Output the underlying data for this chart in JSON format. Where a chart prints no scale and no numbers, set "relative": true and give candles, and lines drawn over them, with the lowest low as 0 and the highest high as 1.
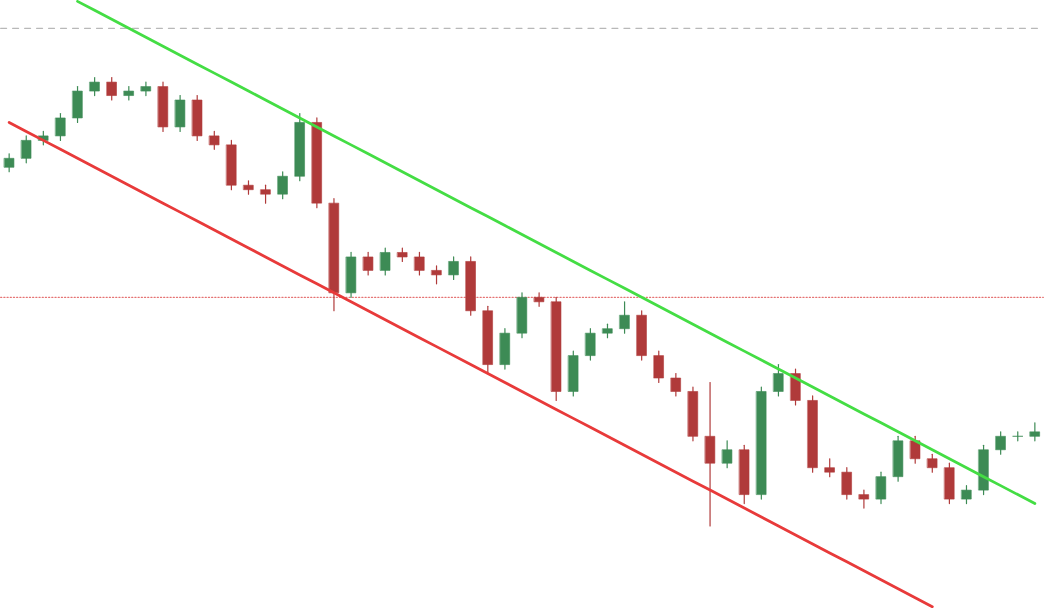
{
  "chart_data": {
    "type": "candlestick",
    "relative": true,
    "categories": [
      null,
      null,
      null,
      null,
      null,
      null,
      null,
      null,
      null,
      null,
      null,
      null,
      null,
      null,
      null,
      null,
      null,
      null,
      null,
      null,
      null,
      null,
      null,
      null,
      null,
      null,
      null,
      null,
      null,
      null,
      null,
      null,
      null,
      null,
      null,
      null,
      null,
      null,
      null,
      null,
      null,
      null,
      null,
      null,
      null,
      null,
      null,
      null,
      null,
      null,
      null,
      null,
      null,
      null,
      null,
      null,
      null,
      null,
      null,
      null,
      null
    ],
    "ohlc": [
      [
        0.8,
        0.83,
        0.79,
        0.82
      ],
      [
        0.82,
        0.87,
        0.81,
        0.86
      ],
      [
        0.86,
        0.88,
        0.85,
        0.87
      ],
      [
        0.87,
        0.92,
        0.86,
        0.91
      ],
      [
        0.91,
        0.98,
        0.9,
        0.97
      ],
      [
        0.97,
        1.0,
        0.96,
        0.99
      ],
      [
        0.99,
        1.0,
        0.95,
        0.96
      ],
      [
        0.96,
        0.98,
        0.95,
        0.97
      ],
      [
        0.97,
        0.99,
        0.96,
        0.98
      ],
      [
        0.98,
        0.99,
        0.88,
        0.89
      ],
      [
        0.89,
        0.96,
        0.88,
        0.95
      ],
      [
        0.95,
        0.96,
        0.86,
        0.87
      ],
      [
        0.87,
        0.88,
        0.84,
        0.85
      ],
      [
        0.85,
        0.86,
        0.75,
        0.76
      ],
      [
        0.76,
        0.77,
        0.74,
        0.75
      ],
      [
        0.75,
        0.76,
        0.72,
        0.74
      ],
      [
        0.74,
        0.79,
        0.73,
        0.78
      ],
      [
        0.78,
        0.92,
        0.77,
        0.9
      ],
      [
        0.9,
        0.91,
        0.71,
        0.72
      ],
      [
        0.72,
        0.73,
        0.48,
        0.52
      ],
      [
        0.52,
        0.61,
        0.51,
        0.6
      ],
      [
        0.6,
        0.61,
        0.56,
        0.57
      ],
      [
        0.57,
        0.62,
        0.56,
        0.61
      ],
      [
        0.61,
        0.62,
        0.59,
        0.6
      ],
      [
        0.6,
        0.61,
        0.56,
        0.57
      ],
      [
        0.57,
        0.58,
        0.54,
        0.56
      ],
      [
        0.56,
        0.6,
        0.55,
        0.59
      ],
      [
        0.59,
        0.6,
        0.47,
        0.48
      ],
      [
        0.48,
        0.49,
        0.34,
        0.36
      ],
      [
        0.36,
        0.44,
        0.35,
        0.43
      ],
      [
        0.43,
        0.52,
        0.42,
        0.51
      ],
      [
        0.51,
        0.52,
        0.49,
        0.5
      ],
      [
        0.5,
        0.51,
        0.28,
        0.3
      ],
      [
        0.3,
        0.39,
        0.29,
        0.38
      ],
      [
        0.38,
        0.44,
        0.37,
        0.43
      ],
      [
        0.43,
        0.45,
        0.42,
        0.44
      ],
      [
        0.44,
        0.5,
        0.43,
        0.47
      ],
      [
        0.47,
        0.48,
        0.37,
        0.38
      ],
      [
        0.38,
        0.39,
        0.32,
        0.33
      ],
      [
        0.33,
        0.34,
        0.29,
        0.3
      ],
      [
        0.3,
        0.31,
        0.19,
        0.2
      ],
      [
        0.2,
        0.32,
        0.0,
        0.14
      ],
      [
        0.14,
        0.19,
        0.13,
        0.17
      ],
      [
        0.17,
        0.18,
        0.05,
        0.07
      ],
      [
        0.07,
        0.31,
        0.06,
        0.3
      ],
      [
        0.3,
        0.36,
        0.29,
        0.34
      ],
      [
        0.34,
        0.35,
        0.27,
        0.28
      ],
      [
        0.28,
        0.29,
        0.12,
        0.13
      ],
      [
        0.13,
        0.15,
        0.11,
        0.12
      ],
      [
        0.12,
        0.13,
        0.06,
        0.07
      ],
      [
        0.07,
        0.08,
        0.04,
        0.06
      ],
      [
        0.06,
        0.12,
        0.05,
        0.11
      ],
      [
        0.11,
        0.2,
        0.1,
        0.19
      ],
      [
        0.19,
        0.2,
        0.14,
        0.15
      ],
      [
        0.15,
        0.16,
        0.12,
        0.13
      ],
      [
        0.13,
        0.14,
        0.05,
        0.06
      ],
      [
        0.06,
        0.09,
        0.05,
        0.08
      ],
      [
        0.08,
        0.18,
        0.07,
        0.17
      ],
      [
        0.17,
        0.21,
        0.16,
        0.2
      ],
      [
        0.2,
        0.21,
        0.19,
        0.2
      ],
      [
        0.2,
        0.23,
        0.19,
        0.21
      ]
    ],
    "colors": [
      "#3d8b55",
      "#3d8b55",
      "#3d8b55",
      "#3d8b55",
      "#3d8b55",
      "#3d8b55",
      "#b03a3a",
      "#3d8b55",
      "#3d8b55",
      "#b03a3a",
      "#3d8b55",
      "#b03a3a",
      "#b03a3a",
      "#b03a3a",
      "#b03a3a",
      "#b03a3a",
      "#3d8b55",
      "#3d8b55",
      "#b03a3a",
      "#b03a3a",
      "#3d8b55",
      "#b03a3a",
      "#3d8b55",
      "#b03a3a",
      "#b03a3a",
      "#b03a3a",
      "#3d8b55",
      "#b03a3a",
      "#b03a3a",
      "#3d8b55",
      "#3d8b55",
      "#b03a3a",
      "#b03a3a",
      "#3d8b55",
      "#3d8b55",
      "#3d8b55",
      "#3d8b55",
      "#b03a3a",
      "#b03a3a",
      "#b03a3a",
      "#b03a3a",
      "#b03a3a",
      "#3d8b55",
      "#b03a3a",
      "#3d8b55",
      "#3d8b55",
      "#b03a3a",
      "#b03a3a",
      "#b03a3a",
      "#b03a3a",
      "#b03a3a",
      "#3d8b55",
      "#3d8b55",
      "#b03a3a",
      "#b03a3a",
      "#b03a3a",
      "#3d8b55",
      "#3d8b55",
      "#3d8b55",
      "#3d8b55",
      "#3d8b55"
    ],
    "series": [
      {
        "type": "line",
        "color": "#44dd44",
        "values": [
          null,
          null,
          null,
          null,
          1.17,
          1.15,
          1.13,
          1.11,
          1.09,
          1.07,
          1.05,
          1.03,
          1.01,
          0.99,
          0.97,
          0.95,
          0.93,
          0.91,
          0.89,
          0.87,
          0.85,
          0.83,
          0.81,
          0.79,
          0.77,
          0.75,
          0.73,
          0.71,
          0.69,
          0.67,
          0.65,
          0.63,
          0.61,
          0.59,
          0.57,
          0.55,
          0.53,
          0.51,
          0.49,
          0.47,
          0.45,
          0.43,
          0.41,
          0.39,
          0.37,
          0.35,
          0.33,
          0.31,
          0.29,
          0.27,
          0.25,
          0.23,
          0.21,
          0.19,
          0.17,
          0.15,
          0.13,
          0.11,
          0.09,
          0.07,
          0.05
        ]
      },
      {
        "type": "line",
        "color": "#e83a3a",
        "values": [
          0.9,
          0.88,
          0.86,
          0.84,
          0.82,
          0.8,
          0.78,
          0.76,
          0.74,
          0.72,
          0.7,
          0.68,
          0.66,
          0.64,
          0.62,
          0.6,
          0.58,
          0.56,
          0.54,
          0.52,
          0.5,
          0.48,
          0.46,
          0.44,
          0.42,
          0.4,
          0.38,
          0.36,
          0.34,
          0.32,
          0.3,
          0.28,
          0.26,
          0.24,
          0.22,
          0.2,
          0.18,
          0.16,
          0.14,
          0.12,
          0.1,
          0.08,
          0.06,
          0.04,
          0.02,
          0,
          -0.02,
          -0.04,
          -0.06,
          -0.08,
          -0.1,
          -0.12,
          -0.14,
          -0.16,
          -0.18,
          null,
          null,
          null,
          null,
          null,
          null
        ]
      }
    ],
    "ref_lines": [
      {
        "axis": "y",
        "value": 1.11,
        "color": "#b8b8b8",
        "line_style": "dashed"
      },
      {
        "axis": "y",
        "value": 0.51,
        "color": "#e57373",
        "line_style": "dotted"
      }
    ]
  }
}
